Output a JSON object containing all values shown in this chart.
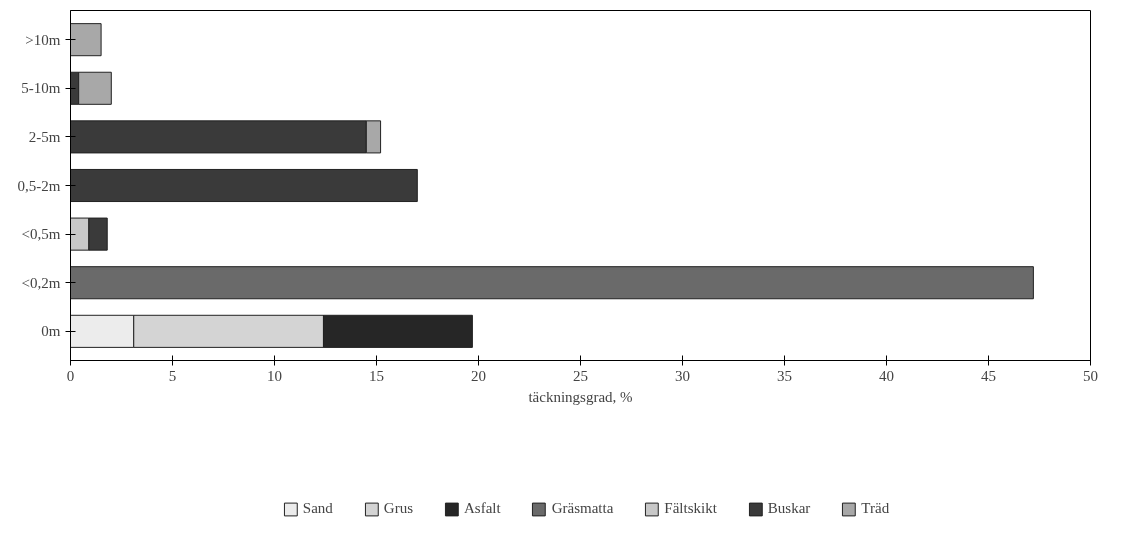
{
  "chart_data": {
    "type": "bar",
    "orientation": "horizontal",
    "stacked": true,
    "xlabel": "täckningsgrad, %",
    "categories": [
      ">10m",
      "5-10m",
      "2-5m",
      "0,5-2m",
      "<0,5m",
      "<0,2m",
      "0m"
    ],
    "series": [
      {
        "name": "Sand",
        "color": "#ececec",
        "values": [
          null,
          null,
          null,
          null,
          null,
          null,
          3.1
        ]
      },
      {
        "name": "Grus",
        "color": "#d4d4d4",
        "values": [
          null,
          null,
          null,
          null,
          null,
          null,
          9.3
        ]
      },
      {
        "name": "Asfalt",
        "color": "#262626",
        "values": [
          null,
          null,
          null,
          null,
          null,
          null,
          7.3
        ]
      },
      {
        "name": "Gräsmatta",
        "color": "#6a6a6a",
        "values": [
          null,
          null,
          null,
          null,
          null,
          47.2,
          null
        ]
      },
      {
        "name": "Fältskikt",
        "color": "#c8c8c8",
        "values": [
          null,
          null,
          null,
          null,
          0.9,
          null,
          null
        ]
      },
      {
        "name": "Buskar",
        "color": "#3a3a3a",
        "values": [
          null,
          0.4,
          14.5,
          17.0,
          0.9,
          null,
          null
        ]
      },
      {
        "name": "Träd",
        "color": "#a8a8a8",
        "values": [
          1.5,
          1.6,
          0.7,
          null,
          null,
          null,
          null
        ]
      }
    ],
    "xlim": [
      0,
      50
    ],
    "xticks": [
      0,
      5,
      10,
      15,
      20,
      25,
      30,
      35,
      40,
      45,
      50
    ],
    "grid": false,
    "legend": "bottom"
  }
}
